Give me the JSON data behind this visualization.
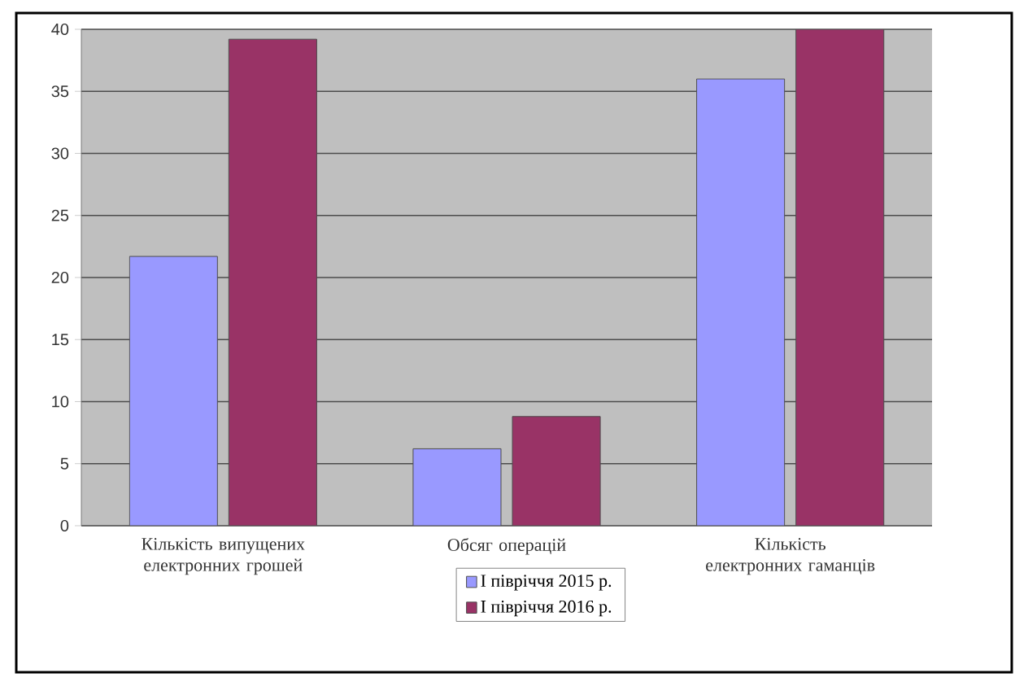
{
  "chart_data": {
    "type": "bar",
    "categories": [
      "Кількість випущених електронних грошей",
      "Обсяг операцій",
      "Кількість електронних гаманців"
    ],
    "series": [
      {
        "name": "І півріччя 2015 р.",
        "color": "#9999ff",
        "values": [
          21.7,
          6.2,
          36.0
        ]
      },
      {
        "name": "І півріччя 2016 р.",
        "color": "#993366",
        "values": [
          39.2,
          8.8,
          40.0
        ]
      }
    ],
    "ylim": [
      0,
      40
    ],
    "yticks": [
      0,
      5,
      10,
      15,
      20,
      25,
      30,
      35,
      40
    ],
    "grid": "y",
    "legend": "bottom"
  }
}
